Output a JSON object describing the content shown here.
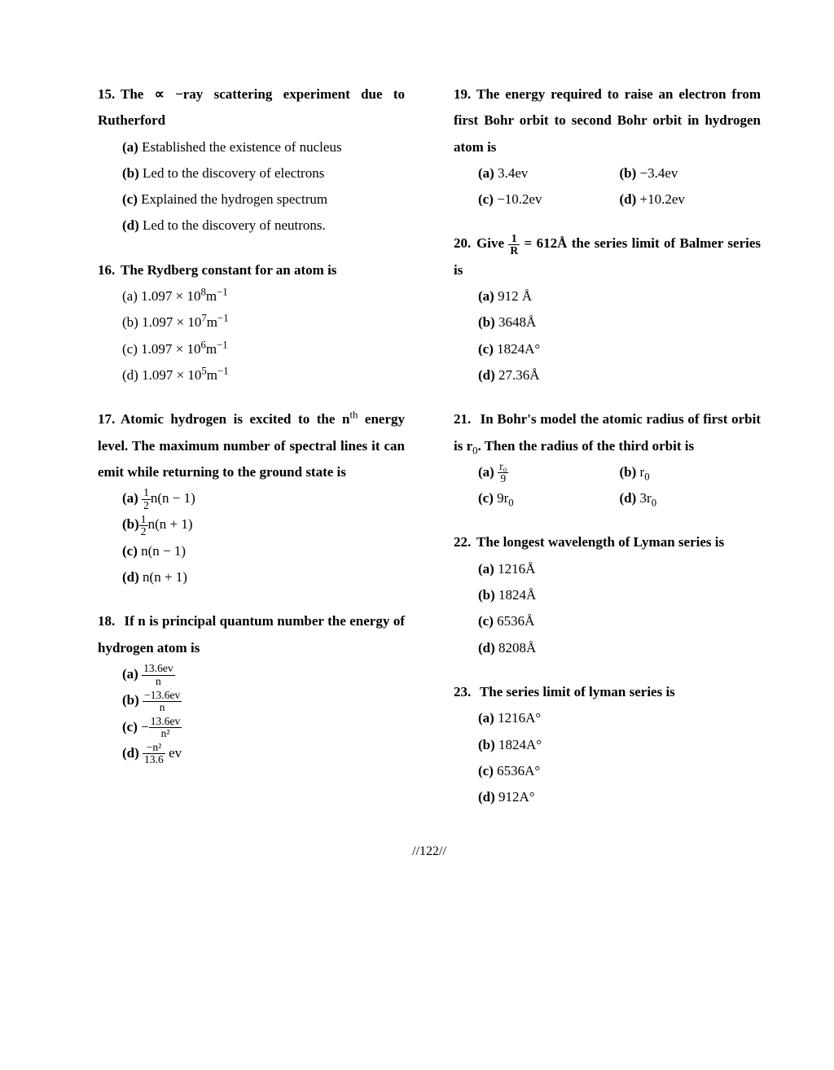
{
  "left": {
    "q15": {
      "num": "15.",
      "stem": "The ∝ −ray scattering experiment due to Rutherford",
      "a_lbl": "(a)",
      "a": "Established the existence of nucleus",
      "b_lbl": "(b)",
      "b": "Led to the discovery of electrons",
      "c_lbl": "(c)",
      "c": "Explained the hydrogen spectrum",
      "d_lbl": "(d)",
      "d": "Led to the discovery of neutrons."
    },
    "q16": {
      "num": "16.",
      "stem": "The Rydberg constant for an atom is",
      "a": "(a) 1.097 × 10",
      "a_sup": "8",
      "a_tail": "m",
      "a_sup2": "−1",
      "b": "(b) 1.097 × 10",
      "b_sup": "7",
      "b_tail": "m",
      "b_sup2": "−1",
      "c": "(c) 1.097 × 10",
      "c_sup": "6",
      "c_tail": "m",
      "c_sup2": "−1",
      "d": "(d) 1.097 × 10",
      "d_sup": "5",
      "d_tail": "m",
      "d_sup2": "−1"
    },
    "q17": {
      "num": "17.",
      "stem1": "Atomic hydrogen is excited to the n",
      "stem_sup": "th",
      "stem2": " energy level. The maximum number of spectral lines it can emit while returning to the ground state is",
      "a_lbl": "(a)",
      "a_frac_n": "1",
      "a_frac_d": "2",
      "a_tail": "n(n − 1)",
      "b_lbl": "(b)",
      "b_frac_n": "1",
      "b_frac_d": "2",
      "b_tail": "n(n + 1)",
      "c_lbl": "(c)",
      "c": " n(n − 1)",
      "d_lbl": "(d)",
      "d": " n(n + 1)"
    },
    "q18": {
      "num": "18.",
      "stem": " If n is principal quantum number the energy of hydrogen atom is",
      "a_lbl": "(a) ",
      "a_n": "13.6ev",
      "a_d": "n",
      "b_lbl": "(b) ",
      "b_n": "−13.6ev",
      "b_d": "n",
      "c_lbl": "(c) ",
      "c_pre": "−",
      "c_n": "13.6ev",
      "c_d": "n²",
      "d_lbl": "(d) ",
      "d_n": "−n²",
      "d_d": "13.6",
      "d_tail": " ev"
    }
  },
  "right": {
    "q19": {
      "num": "19.",
      "stem": "The energy required to raise an electron from first Bohr orbit to second Bohr orbit in hydrogen atom is",
      "a_lbl": "(a)",
      "a": " 3.4ev",
      "b_lbl": "(b)",
      "b": " −3.4ev",
      "c_lbl": "(c)",
      "c": " −10.2ev",
      "d_lbl": "(d)",
      "d": " +10.2ev"
    },
    "q20": {
      "num": "20.",
      "stem1": "Give ",
      "frac_n": "1",
      "frac_d": "R",
      "stem2": " = 612Å the series limit of Balmer series is",
      "a_lbl": "(a)",
      "a": " 912 Å",
      "b_lbl": "(b)",
      "b": " 3648Å",
      "c_lbl": "(c)",
      "c": " 1824A°",
      "d_lbl": "(d)",
      "d": " 27.36Å"
    },
    "q21": {
      "num": "21.",
      "stem1": " In Bohr's model the atomic radius of first orbit is r",
      "stem_sub": "0",
      "stem2": ". Then the radius of the third orbit is",
      "a_lbl": "(a) ",
      "a_n": "r₀",
      "a_d": "9",
      "b_lbl": "(b) ",
      "b": " r",
      "b_sub": "0",
      "c_lbl": "(c)",
      "c": " 9r",
      "c_sub": "0",
      "d_lbl": "(d)",
      "d": " 3r",
      "d_sub": "0"
    },
    "q22": {
      "num": "22.",
      "stem": "The longest wavelength of Lyman series is",
      "a_lbl": "(a)",
      "a": " 1216Å",
      "b_lbl": "(b)",
      "b": " 1824Å",
      "c_lbl": "(c)",
      "c": "  6536Å",
      "d_lbl": "(d)",
      "d": " 8208Å"
    },
    "q23": {
      "num": "23.",
      "stem": " The series limit of lyman series is",
      "a_lbl": "(a)",
      "a": " 1216A°",
      "b_lbl": "(b)",
      "b": " 1824A°",
      "c_lbl": "(c)",
      "c": "  6536A°",
      "d_lbl": "(d)",
      "d": " 912A°"
    }
  },
  "footer": "//122//"
}
